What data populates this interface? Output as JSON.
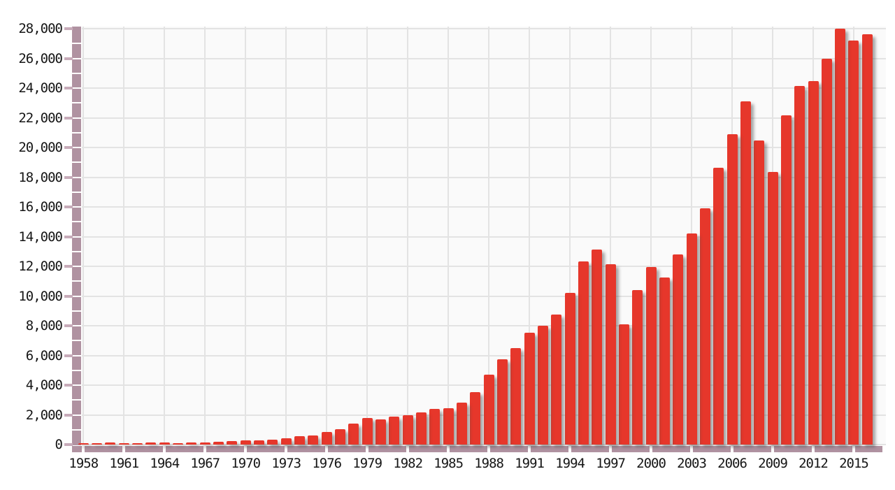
{
  "chart_data": {
    "type": "bar",
    "title": "",
    "x": [
      1958,
      1959,
      1960,
      1961,
      1962,
      1963,
      1964,
      1965,
      1966,
      1967,
      1968,
      1969,
      1970,
      1971,
      1972,
      1973,
      1974,
      1975,
      1976,
      1977,
      1978,
      1979,
      1980,
      1981,
      1982,
      1983,
      1984,
      1985,
      1986,
      1987,
      1988,
      1989,
      1990,
      1991,
      1992,
      1993,
      1994,
      1995,
      1996,
      1997,
      1998,
      1999,
      2000,
      2001,
      2002,
      2003,
      2004,
      2005,
      2006,
      2007,
      2008,
      2009,
      2010,
      2011,
      2012,
      2013,
      2014,
      2015,
      2016
    ],
    "values": [
      80,
      81,
      158,
      94,
      106,
      146,
      124,
      109,
      133,
      161,
      198,
      243,
      279,
      302,
      324,
      406,
      563,
      615,
      831,
      1051,
      1398,
      1774,
      1704,
      1870,
      1978,
      2181,
      2391,
      2457,
      2803,
      3511,
      4686,
      5737,
      6516,
      7524,
      8002,
      8741,
      10206,
      12333,
      13138,
      12132,
      8085,
      10409,
      11948,
      11253,
      12784,
      14209,
      15908,
      18640,
      20888,
      23101,
      20475,
      18339,
      22151,
      24157,
      24454,
      25998,
      27989,
      27221,
      27608
    ],
    "xlabel": "",
    "ylabel": "",
    "ylim": [
      0,
      28000
    ],
    "ytick_step": 2000,
    "ytick_labels": [
      "0",
      "2,000",
      "4,000",
      "6,000",
      "8,000",
      "10,000",
      "12,000",
      "14,000",
      "16,000",
      "18,000",
      "20,000",
      "22,000",
      "24,000",
      "26,000",
      "28,000"
    ],
    "xtick_years": [
      1958,
      1961,
      1964,
      1967,
      1970,
      1973,
      1976,
      1979,
      1982,
      1985,
      1988,
      1991,
      1994,
      1997,
      2000,
      2003,
      2006,
      2009,
      2012,
      2015
    ],
    "xtick_labels": [
      "1958",
      "1961",
      "1964",
      "1967",
      "1970",
      "1973",
      "1976",
      "1979",
      "1982",
      "1985",
      "1988",
      "1991",
      "1994",
      "1997",
      "2000",
      "2003",
      "2006",
      "2009",
      "2012",
      "2015"
    ],
    "grid": true,
    "legend": "none"
  },
  "colors": {
    "bar": "#e6372b",
    "bar_shadow": "#8a8a8a",
    "axis_bar": "#b092a1",
    "axis_tick": "#c7abb9",
    "gridline": "#e3e3e3",
    "plot_bg": "#fafafa",
    "page_bg": "#ffffff",
    "label_text": "#161616"
  }
}
